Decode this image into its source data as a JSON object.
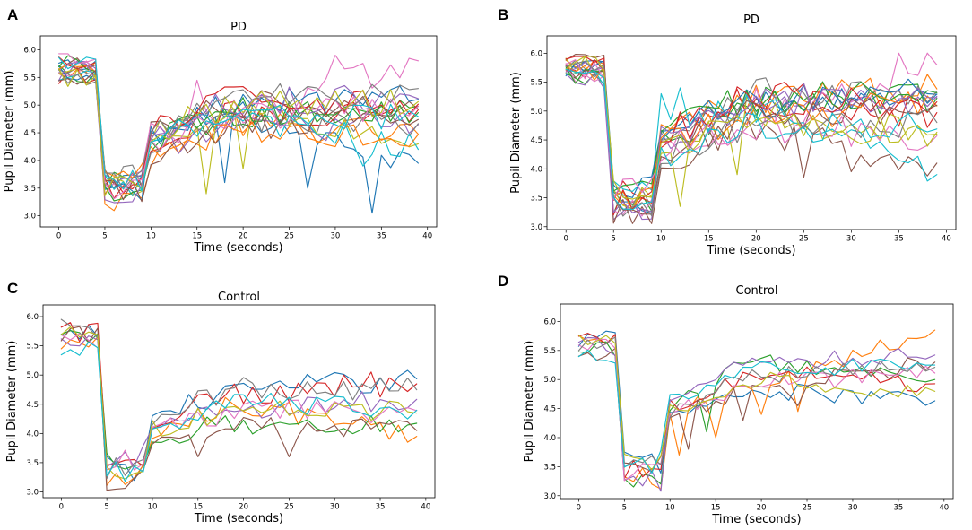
{
  "palette": [
    "#1f77b4",
    "#ff7f0e",
    "#2ca02c",
    "#d62728",
    "#9467bd",
    "#8c564b",
    "#e377c2",
    "#7f7f7f",
    "#bcbd22",
    "#17becf"
  ],
  "chart_data": [
    {
      "panel": "A",
      "type": "line",
      "title": "PD",
      "xlabel": "Time (seconds)",
      "ylabel": "Pupil Diameter (mm)",
      "xlim": [
        -2,
        41
      ],
      "ylim": [
        2.8,
        6.25
      ],
      "xticks": [
        0,
        5,
        10,
        15,
        20,
        25,
        30,
        35,
        40
      ],
      "yticks": [
        3.0,
        3.5,
        4.0,
        4.5,
        5.0,
        5.5,
        6.0
      ],
      "x_range": [
        0,
        39
      ],
      "series_count": 20,
      "baseline_mean": 5.65,
      "trough_mean": 3.5,
      "recovery_mean": 4.8,
      "noise": 0.26,
      "highlights": [
        {
          "color": "#1f77b4",
          "end": 3.95,
          "outliers": [
            [
              34,
              3.05
            ],
            [
              18,
              3.6
            ],
            [
              27,
              3.5
            ]
          ]
        },
        {
          "color": "#e377c2",
          "end": 5.8,
          "outliers": [
            [
              15,
              5.45
            ],
            [
              30,
              5.9
            ]
          ]
        },
        {
          "color": "#bcbd22",
          "end": 4.3,
          "outliers": [
            [
              16,
              3.4
            ],
            [
              20,
              3.85
            ]
          ]
        },
        {
          "color": "#17becf",
          "end": 4.2,
          "outliers": [
            [
              33,
              3.9
            ],
            [
              36,
              4.1
            ]
          ]
        }
      ]
    },
    {
      "panel": "B",
      "type": "line",
      "title": "PD",
      "xlabel": "Time (seconds)",
      "ylabel": "Pupil Diameter (mm)",
      "xlim": [
        -2,
        41
      ],
      "ylim": [
        2.95,
        6.3
      ],
      "xticks": [
        0,
        5,
        10,
        15,
        20,
        25,
        30,
        35,
        40
      ],
      "yticks": [
        3.0,
        3.5,
        4.0,
        4.5,
        5.0,
        5.5,
        6.0
      ],
      "x_range": [
        0,
        39
      ],
      "series_count": 20,
      "baseline_mean": 5.7,
      "trough_mean": 3.5,
      "recovery_mean": 5.0,
      "noise": 0.28,
      "highlights": [
        {
          "color": "#17becf",
          "end": 3.9,
          "outliers": [
            [
              10,
              5.3
            ],
            [
              12,
              5.4
            ]
          ]
        },
        {
          "color": "#8c564b",
          "end": 4.1,
          "outliers": [
            [
              25,
              3.85
            ],
            [
              30,
              3.95
            ]
          ]
        },
        {
          "color": "#e377c2",
          "end": 5.8,
          "outliers": [
            [
              35,
              6.0
            ],
            [
              20,
              5.4
            ]
          ]
        },
        {
          "color": "#bcbd22",
          "end": 4.6,
          "outliers": [
            [
              12,
              3.35
            ],
            [
              18,
              3.9
            ]
          ]
        }
      ]
    },
    {
      "panel": "C",
      "type": "line",
      "title": "Control",
      "xlabel": "Time (seconds)",
      "ylabel": "Pupil Diameter (mm)",
      "xlim": [
        -2,
        41
      ],
      "ylim": [
        2.9,
        6.2
      ],
      "xticks": [
        0,
        5,
        10,
        15,
        20,
        25,
        30,
        35,
        40
      ],
      "yticks": [
        3.0,
        3.5,
        4.0,
        4.5,
        5.0,
        5.5,
        6.0
      ],
      "x_range": [
        0,
        39
      ],
      "series_count": 10,
      "baseline_mean": 5.65,
      "trough_mean": 3.4,
      "recovery_mean": 4.45,
      "noise": 0.2,
      "highlights": [
        {
          "color": "#8c564b",
          "end": 4.05,
          "outliers": [
            [
              15,
              3.6
            ],
            [
              25,
              3.6
            ]
          ]
        },
        {
          "color": "#d62728",
          "end": 4.85,
          "outliers": [
            [
              34,
              5.05
            ],
            [
              31,
              5.0
            ]
          ]
        },
        {
          "color": "#ff7f0e",
          "end": 3.95,
          "outliers": [
            [
              38,
              3.85
            ],
            [
              36,
              3.9
            ]
          ]
        }
      ]
    },
    {
      "panel": "D",
      "type": "line",
      "title": "Control",
      "xlabel": "Time (seconds)",
      "ylabel": "Pupil Diameter (mm)",
      "xlim": [
        -2,
        41
      ],
      "ylim": [
        2.95,
        6.3
      ],
      "xticks": [
        0,
        5,
        10,
        15,
        20,
        25,
        30,
        35,
        40
      ],
      "yticks": [
        3.0,
        3.5,
        4.0,
        4.5,
        5.0,
        5.5,
        6.0
      ],
      "x_range": [
        0,
        39
      ],
      "series_count": 10,
      "baseline_mean": 5.6,
      "trough_mean": 3.45,
      "recovery_mean": 5.05,
      "noise": 0.16,
      "highlights": [
        {
          "color": "#ff7f0e",
          "end": 5.85,
          "outliers": [
            [
              11,
              3.7
            ],
            [
              15,
              4.0
            ],
            [
              20,
              4.4
            ],
            [
              24,
              4.45
            ]
          ]
        },
        {
          "color": "#8c564b",
          "end": 5.3,
          "outliers": [
            [
              12,
              3.8
            ],
            [
              18,
              4.3
            ],
            [
              24,
              4.55
            ]
          ]
        },
        {
          "color": "#2ca02c",
          "end": 5.0,
          "outliers": [
            [
              6,
              3.15
            ],
            [
              9,
              3.2
            ],
            [
              14,
              4.1
            ]
          ]
        }
      ]
    }
  ]
}
